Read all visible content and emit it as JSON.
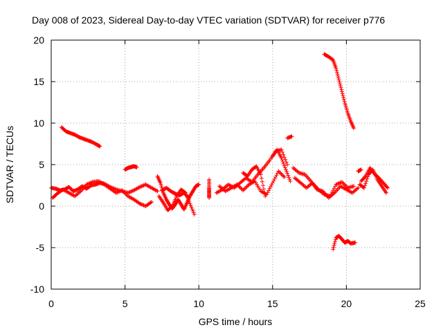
{
  "chart_data": {
    "type": "scatter",
    "title": "Day 008 of 2023, Sidereal Day-to-day VTEC variation (SDTVAR) for receiver p776",
    "xlabel": "GPS time / hours",
    "ylabel": "SDTVAR / TECUs",
    "xlim": [
      0,
      25
    ],
    "ylim": [
      -10,
      20
    ],
    "x_ticks": [
      0,
      5,
      10,
      15,
      20,
      25
    ],
    "x_tick_labels": [
      "0",
      "5",
      "10",
      "15",
      "20",
      "25"
    ],
    "y_ticks": [
      -10,
      -5,
      0,
      5,
      10,
      15,
      20
    ],
    "y_tick_labels": [
      "-10",
      "-5",
      "0",
      "5",
      "10",
      "15",
      "20"
    ],
    "grid": true,
    "marker": "+",
    "series": [
      {
        "name": "SDTVAR",
        "color": "#ff0000",
        "segments": [
          {
            "x": [
              0.0,
              0.3,
              0.6,
              0.9,
              1.2,
              1.5,
              1.8,
              2.1,
              2.4,
              2.7,
              3.0,
              3.3,
              3.6,
              4.0,
              4.4,
              4.8,
              5.2,
              5.6,
              6.0,
              6.4,
              6.8,
              7.2
            ],
            "y": [
              2.2,
              2.1,
              1.9,
              2.0,
              2.3,
              1.8,
              2.0,
              2.4,
              2.1,
              2.5,
              2.6,
              2.8,
              2.7,
              2.3,
              2.0,
              1.8,
              1.6,
              1.9,
              2.3,
              2.6,
              2.2,
              1.8
            ]
          },
          {
            "x": [
              0.1,
              0.4,
              0.8,
              1.2,
              1.6,
              2.0,
              2.4,
              2.8,
              3.2,
              3.6,
              4.0,
              4.4,
              4.8,
              5.2,
              5.6,
              6.0,
              6.4,
              6.8
            ],
            "y": [
              1.0,
              1.5,
              2.0,
              1.6,
              1.2,
              1.8,
              2.6,
              2.9,
              3.0,
              2.6,
              2.1,
              1.6,
              1.9,
              1.2,
              0.8,
              0.3,
              0.0,
              0.5
            ]
          },
          {
            "x": [
              0.7,
              1.0,
              1.3,
              1.6,
              1.9,
              2.2,
              2.5,
              2.8,
              3.1,
              3.3
            ],
            "y": [
              9.5,
              9.0,
              8.8,
              8.6,
              8.3,
              8.1,
              7.9,
              7.7,
              7.4,
              7.2
            ]
          },
          {
            "x": [
              5.0,
              5.2,
              5.4,
              5.6,
              5.8
            ],
            "y": [
              4.4,
              4.6,
              4.7,
              4.8,
              4.7
            ]
          },
          {
            "x": [
              7.2,
              7.4,
              7.6,
              7.8,
              8.0,
              8.2,
              8.4,
              8.6,
              8.8,
              9.0,
              9.2,
              9.4,
              9.6,
              9.8,
              10.0
            ],
            "y": [
              3.6,
              2.8,
              1.6,
              0.8,
              0.2,
              -0.3,
              0.2,
              0.8,
              0.2,
              -0.4,
              0.4,
              1.2,
              1.8,
              2.4,
              2.6
            ]
          },
          {
            "x": [
              7.3,
              7.6,
              7.9,
              8.2,
              8.5,
              8.8,
              9.1,
              9.4,
              9.7
            ],
            "y": [
              1.2,
              0.4,
              -0.5,
              0.0,
              1.2,
              2.0,
              1.6,
              0.3,
              -1.0
            ]
          },
          {
            "x": [
              7.5,
              7.8,
              8.1,
              8.4,
              8.7,
              9.0,
              9.3
            ],
            "y": [
              1.9,
              2.2,
              1.8,
              1.5,
              1.3,
              1.6,
              1.0
            ]
          },
          {
            "x": [
              10.7,
              10.7,
              10.7,
              10.7
            ],
            "y": [
              3.2,
              2.2,
              1.6,
              1.0
            ]
          },
          {
            "x": [
              11.2,
              11.6,
              12.0,
              12.4,
              12.8,
              13.2,
              13.6,
              14.0,
              14.4,
              14.8,
              15.2,
              15.6,
              16.0
            ],
            "y": [
              1.6,
              2.0,
              2.6,
              2.2,
              2.8,
              3.4,
              2.9,
              3.8,
              4.6,
              5.5,
              6.6,
              6.8,
              5.0
            ]
          },
          {
            "x": [
              11.4,
              11.8,
              12.2,
              12.6,
              13.0,
              13.4,
              13.8,
              14.2,
              14.6,
              15.0,
              15.4,
              15.8
            ],
            "y": [
              2.4,
              1.8,
              2.2,
              2.6,
              1.9,
              2.6,
              3.0,
              1.8,
              1.4,
              2.8,
              4.2,
              3.5
            ]
          },
          {
            "x": [
              13.0,
              13.3,
              13.6,
              13.9,
              14.2,
              14.5
            ],
            "y": [
              4.0,
              3.6,
              4.4,
              4.8,
              3.8,
              1.2
            ]
          },
          {
            "x": [
              16.0,
              16.3
            ],
            "y": [
              8.2,
              8.4
            ]
          },
          {
            "x": [
              15.0,
              15.3,
              15.6,
              15.9,
              16.2
            ],
            "y": [
              6.0,
              6.8,
              5.8,
              4.4,
              3.0
            ]
          },
          {
            "x": [
              16.4,
              16.8,
              17.2,
              17.6,
              18.0,
              18.4,
              18.8,
              19.2,
              19.6,
              20.0,
              20.4,
              20.8
            ],
            "y": [
              4.6,
              4.0,
              3.8,
              3.0,
              2.0,
              1.8,
              1.0,
              1.6,
              2.4,
              2.0,
              1.6,
              2.2
            ]
          },
          {
            "x": [
              16.5,
              16.9,
              17.3,
              17.7,
              18.1,
              18.5,
              18.9,
              19.3,
              19.7,
              20.1,
              20.5
            ],
            "y": [
              3.4,
              2.8,
              2.2,
              2.8,
              2.0,
              1.4,
              1.2,
              2.6,
              2.9,
              2.2,
              2.4
            ]
          },
          {
            "x": [
              18.5,
              18.8,
              19.1,
              19.3,
              19.5,
              19.7,
              19.9,
              20.1,
              20.3,
              20.5
            ],
            "y": [
              18.3,
              18.0,
              17.6,
              16.6,
              15.2,
              13.8,
              12.4,
              11.2,
              10.2,
              9.4
            ]
          },
          {
            "x": [
              19.1,
              19.3,
              19.5,
              19.7,
              19.9,
              20.1,
              20.3,
              20.6
            ],
            "y": [
              -5.2,
              -3.8,
              -3.6,
              -4.0,
              -4.4,
              -4.2,
              -4.5,
              -4.4
            ]
          },
          {
            "x": [
              20.8,
              21.0
            ],
            "y": [
              4.2,
              4.4
            ]
          },
          {
            "x": [
              20.9,
              21.2,
              21.5,
              21.8,
              22.1,
              22.4,
              22.7
            ],
            "y": [
              2.6,
              2.2,
              3.8,
              4.4,
              3.2,
              2.4,
              1.6
            ]
          },
          {
            "x": [
              21.0,
              21.3,
              21.6,
              21.9,
              22.2,
              22.5,
              22.8
            ],
            "y": [
              3.0,
              3.6,
              4.6,
              3.9,
              3.4,
              2.8,
              2.2
            ]
          }
        ]
      }
    ]
  }
}
